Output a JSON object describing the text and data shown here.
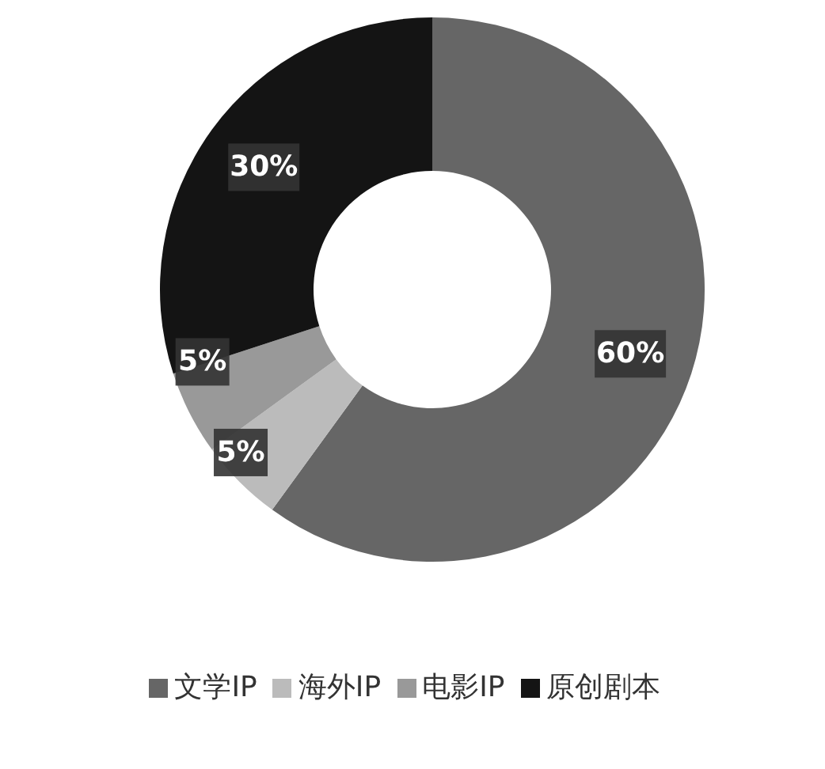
{
  "chart_data": {
    "type": "donut",
    "categories": [
      "文学IP",
      "海外IP",
      "电影IP",
      "原创剧本"
    ],
    "values": [
      60,
      5,
      5,
      30
    ],
    "colors": [
      "#666666",
      "#bbbbbb",
      "#999999",
      "#141414"
    ],
    "value_labels": [
      "60%",
      "5%",
      "5%",
      "30%"
    ],
    "legend": "bottom"
  }
}
